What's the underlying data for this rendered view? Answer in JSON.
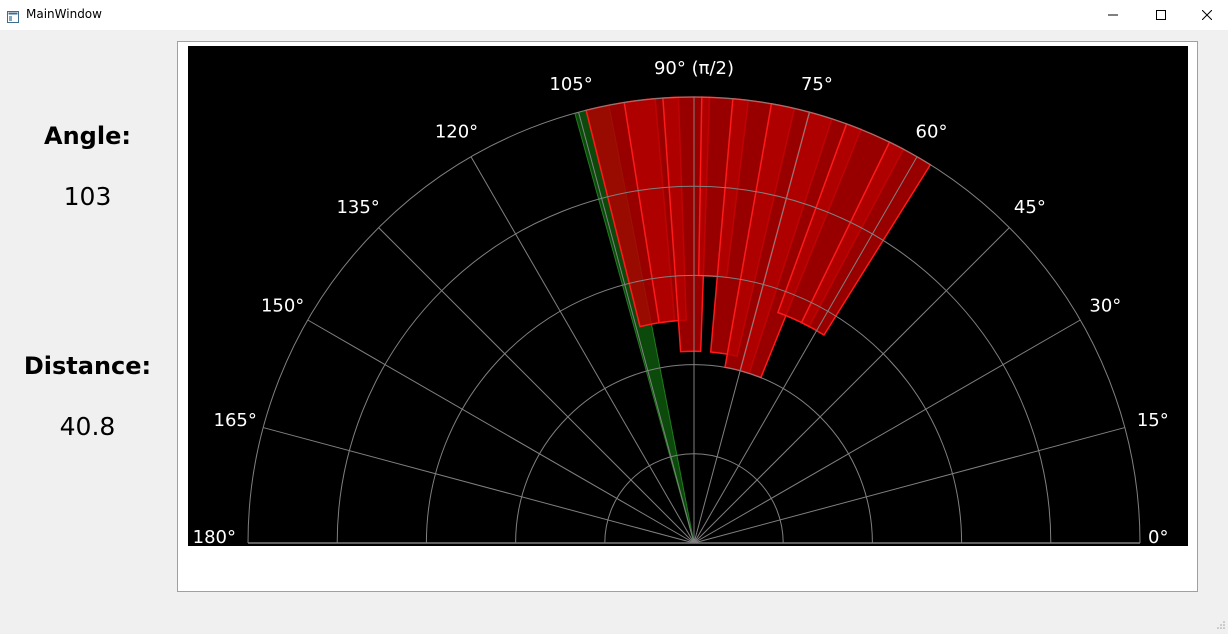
{
  "window": {
    "title": "MainWindow",
    "minimize_icon": "minimize-icon",
    "maximize_icon": "maximize-icon",
    "close_icon": "close-icon"
  },
  "readout": {
    "angle_label": "Angle:",
    "angle_value": "103",
    "distance_label": "Distance:",
    "distance_value": "40.8"
  },
  "colors": {
    "background": "#000000",
    "grid": "#808080",
    "sweep": "#0c4a0c",
    "obstacle_dark": "#b30000",
    "obstacle_edge": "#ff1a1a",
    "labels": "#ffffff"
  },
  "chart_data": {
    "type": "polar",
    "theta_range": [
      0,
      180
    ],
    "angle_tick_labels": [
      {
        "angle": 0,
        "label": "0°"
      },
      {
        "angle": 15,
        "label": "15°"
      },
      {
        "angle": 30,
        "label": "30°"
      },
      {
        "angle": 45,
        "label": "45°"
      },
      {
        "angle": 60,
        "label": "60°"
      },
      {
        "angle": 75,
        "label": "75°"
      },
      {
        "angle": 90,
        "label": "90° (π/2)"
      },
      {
        "angle": 105,
        "label": "105°"
      },
      {
        "angle": 120,
        "label": "120°"
      },
      {
        "angle": 135,
        "label": "135°"
      },
      {
        "angle": 150,
        "label": "150°"
      },
      {
        "angle": 165,
        "label": "165°"
      },
      {
        "angle": 180,
        "label": "180°"
      }
    ],
    "radial_grid_fractions": [
      0.2,
      0.4,
      0.6,
      0.8,
      1.0
    ],
    "sweep": {
      "angle_start": 101,
      "angle_end": 105.5,
      "range": [
        0,
        1.0
      ]
    },
    "obstacles": [
      {
        "angle_start": 95,
        "angle_end": 104,
        "range": [
          0.5,
          1.0
        ]
      },
      {
        "angle_start": 92,
        "angle_end": 99,
        "range": [
          0.5,
          1.0
        ]
      },
      {
        "angle_start": 88,
        "angle_end": 94,
        "range": [
          0.43,
          1.0
        ]
      },
      {
        "angle_start": 83,
        "angle_end": 89,
        "range": [
          0.6,
          1.0
        ]
      },
      {
        "angle_start": 77,
        "angle_end": 85,
        "range": [
          0.43,
          1.0
        ]
      },
      {
        "angle_start": 72,
        "angle_end": 80,
        "range": [
          0.4,
          1.0
        ]
      },
      {
        "angle_start": 68,
        "angle_end": 75,
        "range": [
          0.4,
          1.0
        ]
      },
      {
        "angle_start": 62,
        "angle_end": 70,
        "range": [
          0.55,
          1.0
        ]
      },
      {
        "angle_start": 58,
        "angle_end": 64,
        "range": [
          0.55,
          1.0
        ]
      }
    ]
  }
}
